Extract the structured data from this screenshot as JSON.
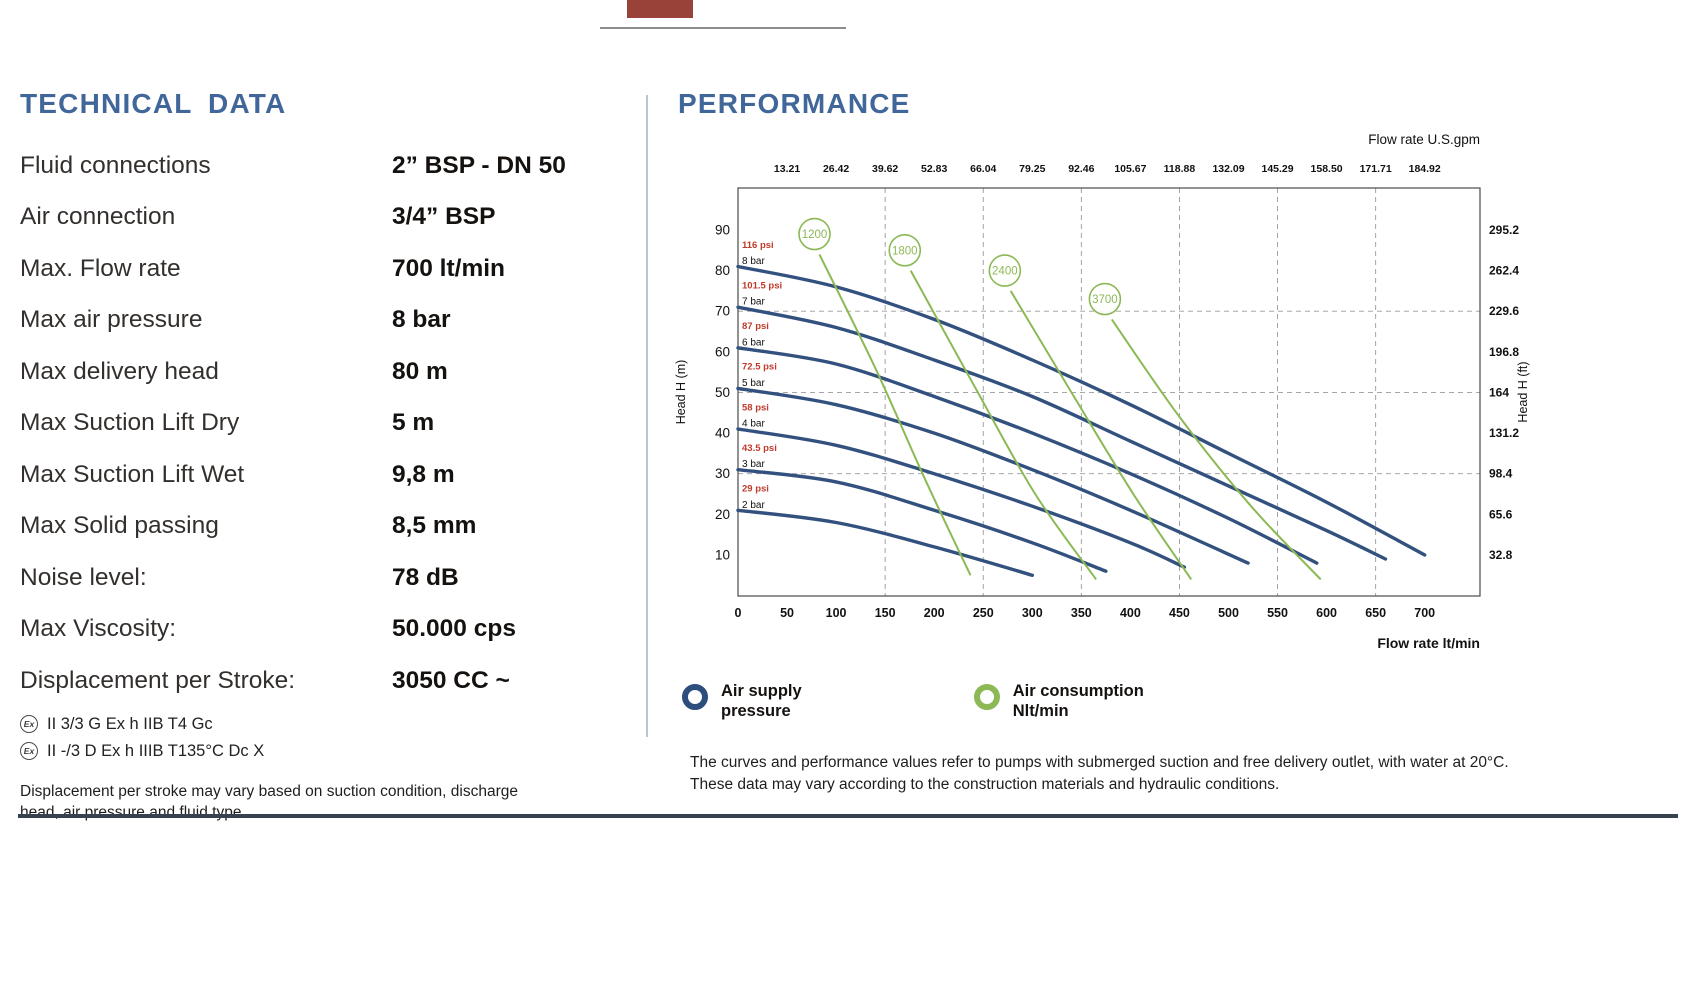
{
  "technical": {
    "heading": "TECHNICAL DATA",
    "rows": [
      {
        "label": "Fluid connections",
        "value": "2” BSP - DN 50"
      },
      {
        "label": "Air connection",
        "value": "3/4” BSP"
      },
      {
        "label": "Max. Flow rate",
        "value": "700 lt/min"
      },
      {
        "label": "Max air pressure",
        "value": "8 bar"
      },
      {
        "label": "Max delivery head",
        "value": "80 m"
      },
      {
        "label": "Max Suction Lift Dry",
        "value": "5 m"
      },
      {
        "label": "Max Suction Lift Wet",
        "value": "9,8 m"
      },
      {
        "label": "Max Solid passing",
        "value": "8,5 mm"
      },
      {
        "label": "Noise level:",
        "value": "78 dB"
      },
      {
        "label": "Max Viscosity:",
        "value": "50.000 cps"
      },
      {
        "label": "Displacement per Stroke:",
        "value": "3050 CC ~"
      }
    ],
    "atex_lines": [
      {
        "symbol": "Ex",
        "text": "II 3/3 G Ex h IIB T4 Gc"
      },
      {
        "symbol": "Ex",
        "text": "II -/3 D Ex h IIIB T135°C Dc X"
      }
    ],
    "note": "Displacement per stroke may vary based on suction condition, discharge head, air pressure and fluid type."
  },
  "performance": {
    "heading": "PERFORMANCE",
    "legend": [
      {
        "icon": "air-supply-ring",
        "color": "#2d4d7c",
        "lines": [
          "Air supply",
          "pressure"
        ]
      },
      {
        "icon": "air-consumption-ring",
        "color": "#8cb956",
        "lines": [
          "Air consumption",
          "Nlt/min"
        ]
      }
    ],
    "note": "The curves and performance values refer to pumps with submerged suction and free delivery outlet, with water at 20°C. These data may vary according to the construction materials and hydraulic conditions."
  },
  "chart_data": {
    "type": "line",
    "title": "",
    "axes": {
      "bottom": {
        "label": "Flow rate  lt/min",
        "ticks": [
          0,
          50,
          100,
          150,
          200,
          250,
          300,
          350,
          400,
          450,
          500,
          550,
          600,
          650,
          700
        ],
        "range": [
          0,
          757
        ]
      },
      "top": {
        "label": "Flow rate U.S.gpm",
        "ticks": [
          "13.21",
          "26.42",
          "39.62",
          "52.83",
          "66.04",
          "79.25",
          "92.46",
          "105.67",
          "118.88",
          "132.09",
          "145.29",
          "158.50",
          "171.71",
          "184.92"
        ],
        "tick_positions_ltmin": [
          50,
          100,
          150,
          200,
          250,
          300,
          350,
          400,
          450,
          500,
          550,
          600,
          650,
          700
        ]
      },
      "left": {
        "label": "Head H (m)",
        "ticks": [
          90,
          80,
          70,
          60,
          50,
          40,
          30,
          20,
          10
        ],
        "range": [
          0,
          100
        ]
      },
      "right": {
        "label": "Head H (ft)",
        "ticks": [
          "295.2",
          "262.4",
          "229.6",
          "196.8",
          "164",
          "131.2",
          "98.4",
          "65.6",
          "32.8"
        ],
        "tick_positions_m": [
          90,
          80,
          70,
          60,
          50,
          40,
          30,
          20,
          10
        ]
      }
    },
    "grid": {
      "vertical_ltmin": [
        150,
        250,
        350,
        450,
        550,
        650
      ],
      "horizontal_m": [
        30,
        50,
        70
      ],
      "style": "dashed"
    },
    "pressure_curves": [
      {
        "bar": "8 bar",
        "psi": "116 psi",
        "points": [
          [
            0,
            81
          ],
          [
            100,
            76
          ],
          [
            200,
            68
          ],
          [
            300,
            58
          ],
          [
            400,
            47
          ],
          [
            500,
            35
          ],
          [
            600,
            23
          ],
          [
            700,
            10
          ]
        ]
      },
      {
        "bar": "7 bar",
        "psi": "101.5 psi",
        "points": [
          [
            0,
            71
          ],
          [
            100,
            66
          ],
          [
            200,
            58
          ],
          [
            300,
            49
          ],
          [
            400,
            38
          ],
          [
            500,
            27
          ],
          [
            600,
            16
          ],
          [
            660,
            9
          ]
        ]
      },
      {
        "bar": "6 bar",
        "psi": "87 psi",
        "points": [
          [
            0,
            61
          ],
          [
            100,
            57
          ],
          [
            200,
            49
          ],
          [
            300,
            40
          ],
          [
            400,
            30
          ],
          [
            500,
            19
          ],
          [
            590,
            8
          ]
        ]
      },
      {
        "bar": "5 bar",
        "psi": "72.5 psi",
        "points": [
          [
            0,
            51
          ],
          [
            100,
            47
          ],
          [
            200,
            40
          ],
          [
            300,
            31
          ],
          [
            400,
            21
          ],
          [
            520,
            8
          ]
        ]
      },
      {
        "bar": "4 bar",
        "psi": "58 psi",
        "points": [
          [
            0,
            41
          ],
          [
            100,
            37
          ],
          [
            200,
            30
          ],
          [
            300,
            22
          ],
          [
            400,
            13
          ],
          [
            455,
            7
          ]
        ]
      },
      {
        "bar": "3 bar",
        "psi": "43.5 psi",
        "points": [
          [
            0,
            31
          ],
          [
            100,
            28
          ],
          [
            200,
            21
          ],
          [
            300,
            13
          ],
          [
            375,
            6
          ]
        ]
      },
      {
        "bar": "2 bar",
        "psi": "29 psi",
        "points": [
          [
            0,
            21
          ],
          [
            100,
            18
          ],
          [
            200,
            12
          ],
          [
            300,
            5
          ]
        ]
      }
    ],
    "air_consumption_lines": [
      {
        "label": "1200",
        "circle_at": [
          78,
          89
        ],
        "points": [
          [
            83,
            84
          ],
          [
            140,
            56
          ],
          [
            190,
            29
          ],
          [
            237,
            5
          ]
        ]
      },
      {
        "label": "1800",
        "circle_at": [
          170,
          85
        ],
        "points": [
          [
            176,
            80
          ],
          [
            240,
            52
          ],
          [
            303,
            25
          ],
          [
            365,
            4
          ]
        ]
      },
      {
        "label": "2400",
        "circle_at": [
          272,
          80
        ],
        "points": [
          [
            278,
            75
          ],
          [
            340,
            50
          ],
          [
            403,
            25
          ],
          [
            462,
            4
          ]
        ]
      },
      {
        "label": "3700",
        "circle_at": [
          374,
          73
        ],
        "points": [
          [
            381,
            68
          ],
          [
            450,
            44
          ],
          [
            523,
            22
          ],
          [
            594,
            4
          ]
        ]
      }
    ],
    "colors": {
      "pressure_curve": "#33517e",
      "air_line": "#8cb956",
      "psi_text": "#c03a2b",
      "axis_text": "#111111"
    }
  }
}
